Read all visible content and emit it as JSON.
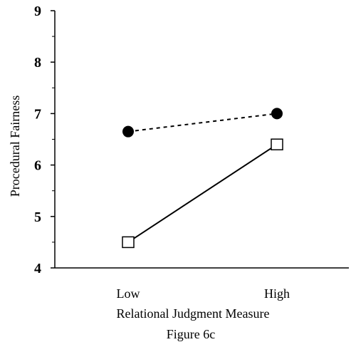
{
  "chart_data": {
    "type": "line",
    "categories": [
      "Low",
      "High"
    ],
    "series": [
      {
        "values": [
          6.65,
          7.0
        ],
        "marker": "filled-circle",
        "line_style": "dashed",
        "color": "#000000"
      },
      {
        "values": [
          4.5,
          6.4
        ],
        "marker": "open-square",
        "line_style": "solid",
        "color": "#000000"
      }
    ],
    "xlabel": "Relational Judgment Measure",
    "ylabel": "Procedural Fairness",
    "ylim": [
      4,
      9
    ],
    "yticks": [
      "4",
      "5",
      "6",
      "7",
      "8",
      "9"
    ],
    "minor_ticks": true,
    "grid": false,
    "caption": "Figure 6c"
  }
}
